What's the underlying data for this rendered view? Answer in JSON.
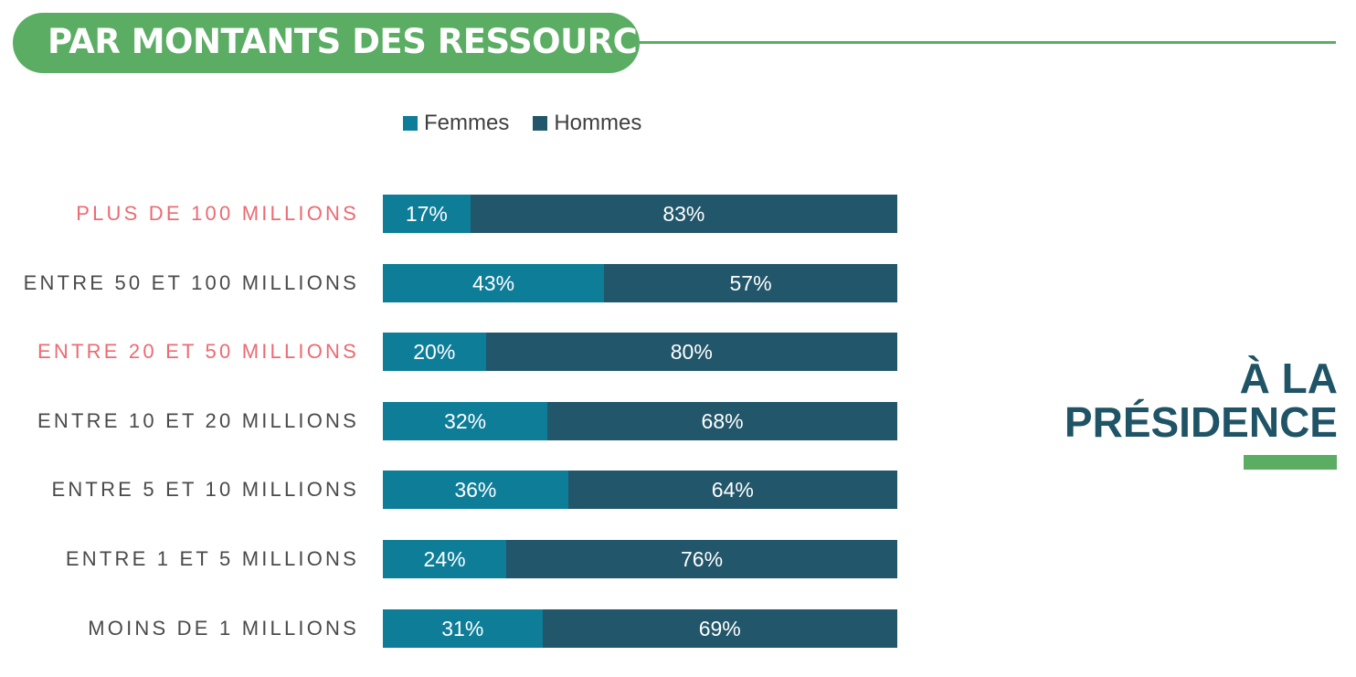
{
  "header": {
    "title": "PAR MONTANTS DES RESSOURCES***"
  },
  "side_title": {
    "line1": "À LA",
    "line2": "PRÉSIDENCE"
  },
  "colors": {
    "femmes": "#0e7d98",
    "hommes": "#22566a",
    "accent_green": "#5aad63",
    "highlight_label": "#ec6a72",
    "default_label": "#4a4a4a"
  },
  "chart_data": {
    "type": "bar",
    "orientation": "horizontal",
    "stacked": true,
    "normalized_percent": true,
    "legend": {
      "placement": "top",
      "entries": [
        "Femmes",
        "Hommes"
      ]
    },
    "categories": [
      "PLUS DE 100 MILLIONS",
      "ENTRE 50 ET 100 MILLIONS",
      "ENTRE 20 ET 50 MILLIONS",
      "ENTRE 10 ET 20 MILLIONS",
      "ENTRE 5 ET 10 MILLIONS",
      "ENTRE 1 ET 5 MILLIONS",
      "MOINS DE 1 MILLIONS"
    ],
    "highlighted_categories": [
      "PLUS DE 100 MILLIONS",
      "ENTRE 20 ET 50 MILLIONS"
    ],
    "series": [
      {
        "name": "Femmes",
        "values": [
          17,
          43,
          20,
          32,
          36,
          24,
          31
        ],
        "labels": [
          "17%",
          "43%",
          "20%",
          "32%",
          "36%",
          "24%",
          "31%"
        ]
      },
      {
        "name": "Hommes",
        "values": [
          83,
          57,
          80,
          68,
          64,
          76,
          69
        ],
        "labels": [
          "83%",
          "57%",
          "80%",
          "68%",
          "64%",
          "76%",
          "69%"
        ]
      }
    ],
    "xlim": [
      0,
      100
    ],
    "grid": false
  }
}
